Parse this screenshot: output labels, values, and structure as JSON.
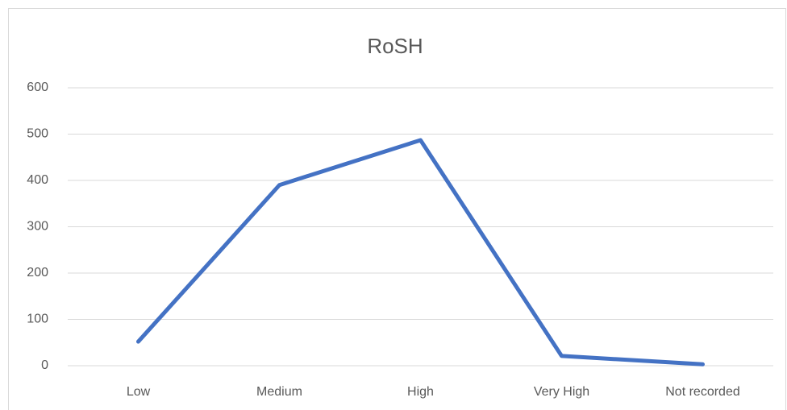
{
  "chart_data": {
    "type": "line",
    "title": "RoSH",
    "categories": [
      "Low",
      "Medium",
      "High",
      "Very High",
      "Not recorded"
    ],
    "values": [
      52,
      390,
      487,
      21,
      3
    ],
    "color": "#4472c4",
    "ylim": [
      0,
      600
    ],
    "yticks": [
      0,
      100,
      200,
      300,
      400,
      500,
      600
    ],
    "grid": true
  }
}
